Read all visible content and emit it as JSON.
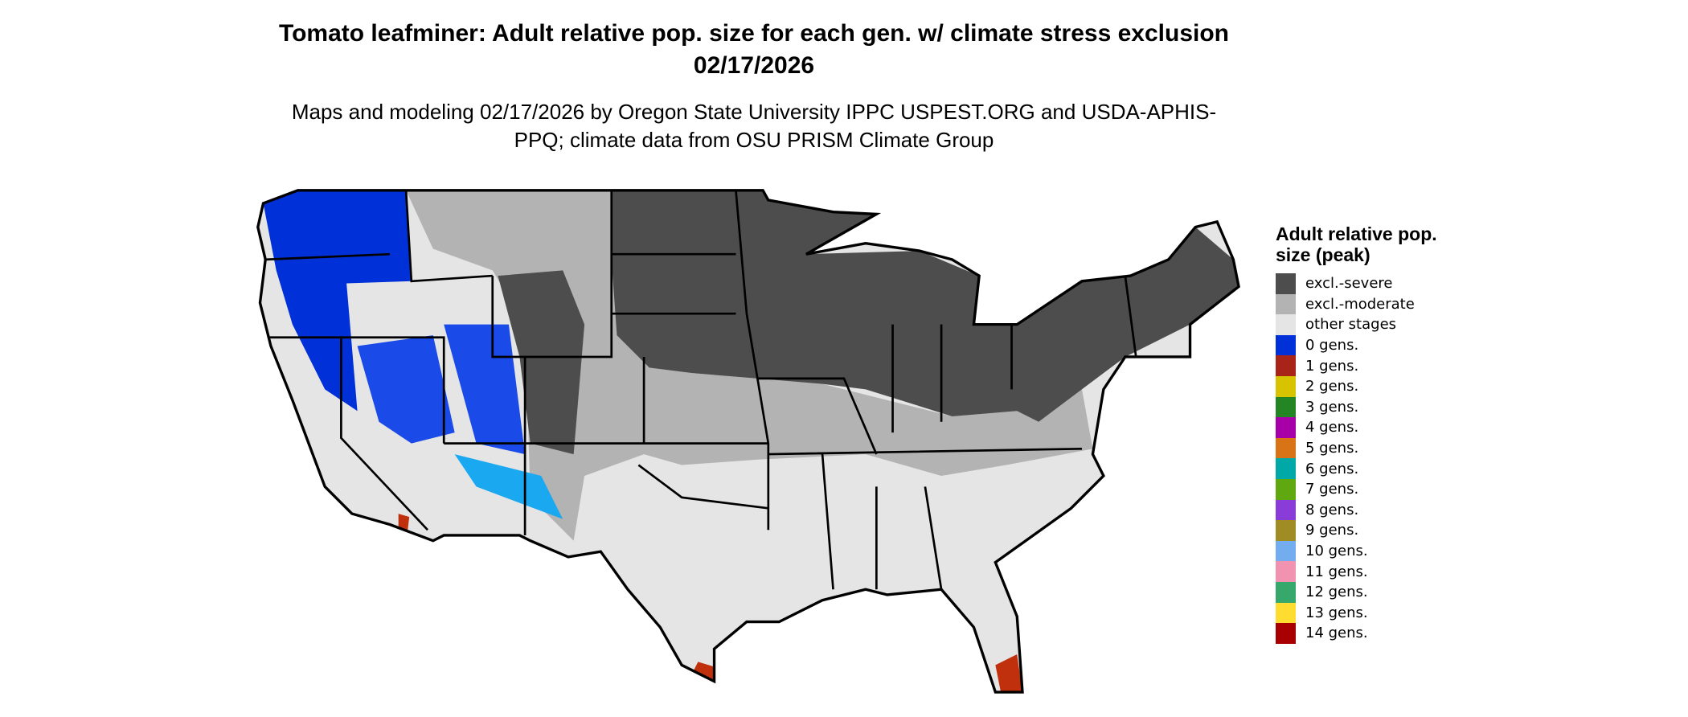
{
  "title": "Tomato leafminer: Adult relative pop. size for each gen. w/ climate stress exclusion 02/17/2026",
  "subtitle": "Maps and modeling 02/17/2026 by Oregon State University IPPC USPEST.ORG and USDA-APHIS-PPQ; climate data from OSU PRISM Climate Group",
  "legend": {
    "title": "Adult relative pop. size (peak)",
    "items": [
      {
        "label": "excl.-severe",
        "color": "#4d4d4d"
      },
      {
        "label": "excl.-moderate",
        "color": "#b3b3b3"
      },
      {
        "label": "other stages",
        "color": "#e5e5e5"
      },
      {
        "label": "0 gens.",
        "color": "#0030d8"
      },
      {
        "label": "1 gens.",
        "color": "#a82418"
      },
      {
        "label": "2 gens.",
        "color": "#d8c300"
      },
      {
        "label": "3 gens.",
        "color": "#248524"
      },
      {
        "label": "4 gens.",
        "color": "#a800a8"
      },
      {
        "label": "5 gens.",
        "color": "#d87416"
      },
      {
        "label": "6 gens.",
        "color": "#00a8a8"
      },
      {
        "label": "7 gens.",
        "color": "#60a810"
      },
      {
        "label": "8 gens.",
        "color": "#8a3cd8"
      },
      {
        "label": "9 gens.",
        "color": "#a08c24"
      },
      {
        "label": "10 gens.",
        "color": "#74acf0"
      },
      {
        "label": "11 gens.",
        "color": "#f092b0"
      },
      {
        "label": "12 gens.",
        "color": "#36a86c"
      },
      {
        "label": "13 gens.",
        "color": "#ffdc30"
      },
      {
        "label": "14 gens.",
        "color": "#a80000"
      }
    ]
  }
}
